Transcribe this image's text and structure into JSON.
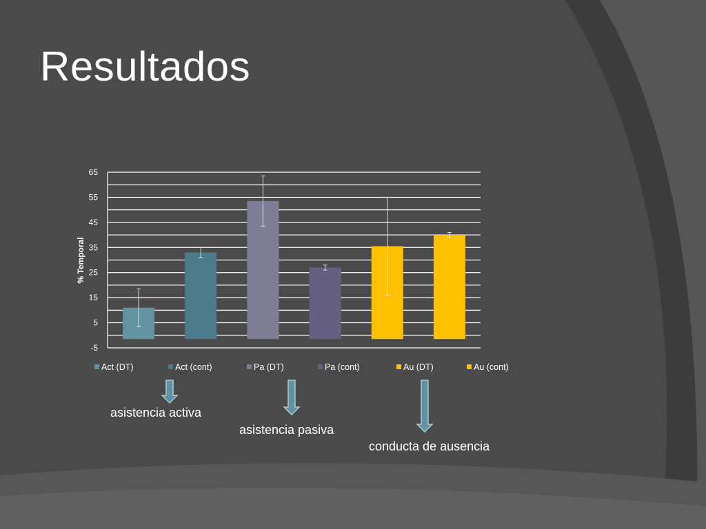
{
  "slide": {
    "title": "Resultados"
  },
  "theme": {
    "background": "#4a4a4a",
    "panel_dark": "#3c3c3c",
    "panel_mid": "#565656",
    "gridline": "#ffffff",
    "arrow_fill": "#5e92a4",
    "arrow_stroke": "#a9cbd6"
  },
  "chart_data": {
    "type": "bar",
    "title": "",
    "ylabel": "% Temporal",
    "xlabel": "",
    "ylim": [
      -5,
      65
    ],
    "yticks": [
      -5,
      5,
      15,
      25,
      35,
      45,
      55,
      65
    ],
    "grid": true,
    "legend_position": "bottom",
    "series": [
      {
        "name": "Act (DT)",
        "value": 11,
        "error": [
          3.5,
          18.5
        ],
        "color": "#6393a0"
      },
      {
        "name": "Act (cont)",
        "value": 33,
        "error": [
          31,
          35
        ],
        "color": "#4b7a8b"
      },
      {
        "name": "Pa (DT)",
        "value": 53.5,
        "error": [
          43.5,
          63.5
        ],
        "color": "#7e7d96"
      },
      {
        "name": "Pa (cont)",
        "value": 27,
        "error": [
          26,
          28
        ],
        "color": "#625f80"
      },
      {
        "name": "Au (DT)",
        "value": 35.5,
        "error": [
          16,
          55
        ],
        "color": "#ffc000"
      },
      {
        "name": "Au (cont)",
        "value": 40,
        "error": [
          39,
          41
        ],
        "color": "#ffc000"
      }
    ]
  },
  "annotations": [
    {
      "label": "asistencia activa"
    },
    {
      "label": "asistencia pasiva"
    },
    {
      "label": "conducta de ausencia"
    }
  ]
}
